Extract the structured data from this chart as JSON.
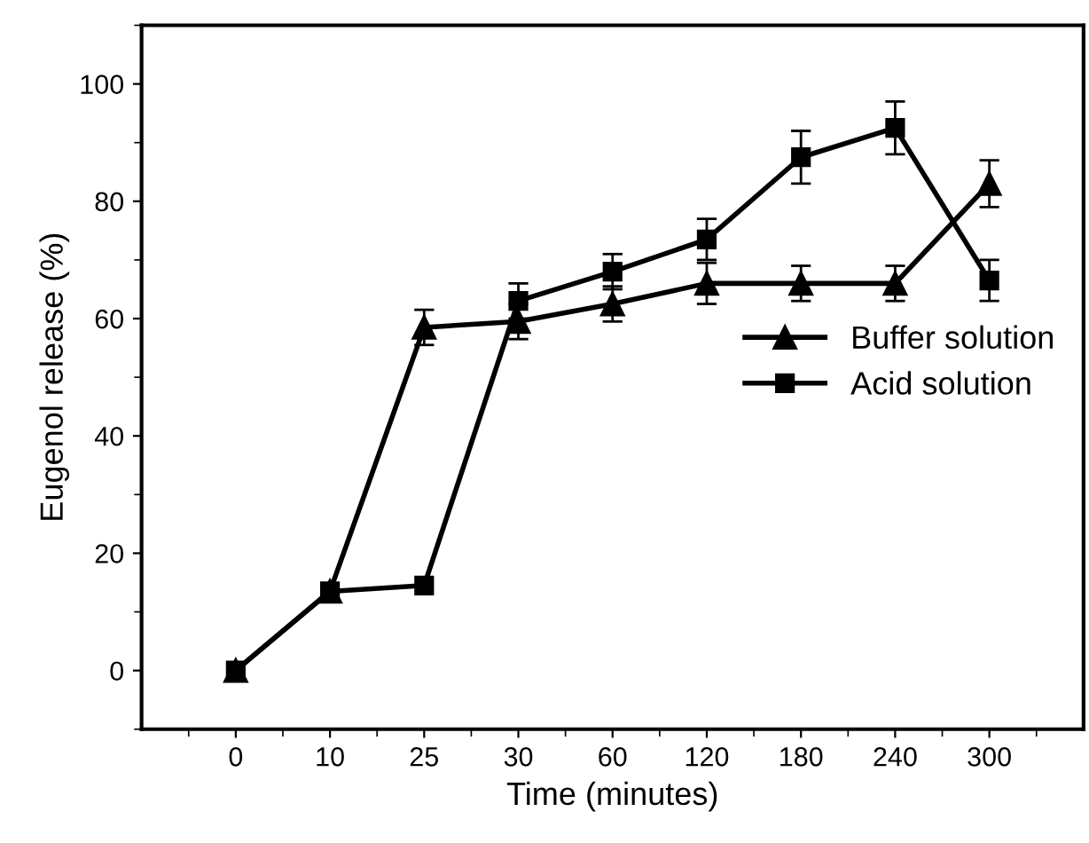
{
  "chart_data": {
    "type": "line",
    "xlabel": "Time (minutes)",
    "ylabel": "Eugenol release (%)",
    "categories": [
      "0",
      "10",
      "25",
      "30",
      "60",
      "120",
      "180",
      "240",
      "300"
    ],
    "ylim": [
      -10,
      110
    ],
    "yticks": [
      0,
      20,
      40,
      60,
      80,
      100
    ],
    "grid": false,
    "legend": "center right",
    "line_style": "solid",
    "series": [
      {
        "name": "Buffer solution",
        "color": "#000000",
        "marker": "triangle",
        "values": [
          0,
          13.5,
          58.5,
          59.5,
          62.5,
          66,
          66,
          66,
          83
        ],
        "errors": [
          null,
          null,
          3,
          3,
          3,
          3.5,
          3,
          3,
          4
        ]
      },
      {
        "name": "Acid solution",
        "color": "#000000",
        "marker": "square",
        "values": [
          0,
          13.5,
          14.5,
          63,
          68,
          73.5,
          87.5,
          92.5,
          66.5
        ],
        "errors": [
          null,
          null,
          null,
          3,
          3,
          3.5,
          4.5,
          4.5,
          3.5
        ]
      }
    ]
  }
}
